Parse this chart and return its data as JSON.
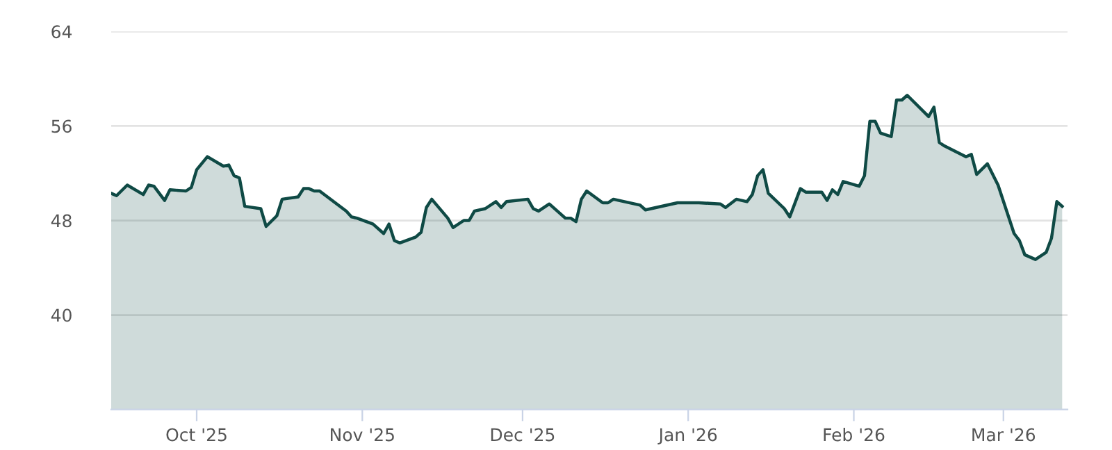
{
  "chart_data": {
    "type": "area",
    "xlim": [
      "2025-09-15",
      "2026-03-13"
    ],
    "ylim": [
      32,
      64
    ],
    "xticks": [
      {
        "value": "2025-10-01",
        "label": "Oct '25"
      },
      {
        "value": "2025-11-01",
        "label": "Nov '25"
      },
      {
        "value": "2025-12-01",
        "label": "Dec '25"
      },
      {
        "value": "2026-01-01",
        "label": "Jan '26"
      },
      {
        "value": "2026-02-01",
        "label": "Feb '26"
      },
      {
        "value": "2026-03-01",
        "label": "Mar '26"
      }
    ],
    "yticks": [
      40,
      48,
      56,
      64
    ],
    "grid": "y",
    "legend": false,
    "series": [
      {
        "color": "#0f4a45",
        "x": [
          "2025-09-15",
          "2025-09-16",
          "2025-09-18",
          "2025-09-21",
          "2025-09-22",
          "2025-09-23",
          "2025-09-25",
          "2025-09-26",
          "2025-09-29",
          "2025-09-30",
          "2025-10-01",
          "2025-10-03",
          "2025-10-06",
          "2025-10-07",
          "2025-10-08",
          "2025-10-09",
          "2025-10-10",
          "2025-10-13",
          "2025-10-14",
          "2025-10-16",
          "2025-10-17",
          "2025-10-20",
          "2025-10-21",
          "2025-10-22",
          "2025-10-23",
          "2025-10-24",
          "2025-10-29",
          "2025-10-30",
          "2025-10-31",
          "2025-11-03",
          "2025-11-05",
          "2025-11-06",
          "2025-11-07",
          "2025-11-08",
          "2025-11-11",
          "2025-11-12",
          "2025-11-13",
          "2025-11-14",
          "2025-11-17",
          "2025-11-18",
          "2025-11-20",
          "2025-11-21",
          "2025-11-22",
          "2025-11-24",
          "2025-11-26",
          "2025-11-27",
          "2025-11-28",
          "2025-12-02",
          "2025-12-03",
          "2025-12-04",
          "2025-12-06",
          "2025-12-09",
          "2025-12-10",
          "2025-12-11",
          "2025-12-12",
          "2025-12-13",
          "2025-12-16",
          "2025-12-17",
          "2025-12-18",
          "2025-12-23",
          "2025-12-24",
          "2025-12-30",
          "2026-01-03",
          "2026-01-07",
          "2026-01-08",
          "2026-01-10",
          "2026-01-12",
          "2026-01-13",
          "2026-01-14",
          "2026-01-15",
          "2026-01-16",
          "2026-01-19",
          "2026-01-20",
          "2026-01-22",
          "2026-01-23",
          "2026-01-26",
          "2026-01-27",
          "2026-01-28",
          "2026-01-29",
          "2026-01-30",
          "2026-02-02",
          "2026-02-03",
          "2026-02-04",
          "2026-02-05",
          "2026-02-06",
          "2026-02-08",
          "2026-02-09",
          "2026-02-10",
          "2026-02-11",
          "2026-02-15",
          "2026-02-16",
          "2026-02-17",
          "2026-02-18",
          "2026-02-22",
          "2026-02-23",
          "2026-02-24",
          "2026-02-26",
          "2026-02-28",
          "2026-03-03",
          "2026-03-04",
          "2026-03-05",
          "2026-03-07",
          "2026-03-09",
          "2026-03-10",
          "2026-03-11",
          "2026-03-12"
        ],
        "values": [
          50.3,
          50.1,
          51.0,
          50.2,
          51.0,
          50.9,
          49.7,
          50.6,
          50.5,
          50.8,
          52.3,
          53.4,
          52.6,
          52.7,
          51.8,
          51.6,
          49.2,
          49.0,
          47.5,
          48.4,
          49.8,
          50.0,
          50.7,
          50.7,
          50.5,
          50.5,
          48.8,
          48.3,
          48.2,
          47.7,
          46.9,
          47.7,
          46.3,
          46.1,
          46.6,
          47.0,
          49.1,
          49.8,
          48.2,
          47.4,
          48.0,
          48.0,
          48.8,
          49.0,
          49.6,
          49.1,
          49.6,
          49.8,
          49.0,
          48.8,
          49.4,
          48.2,
          48.2,
          47.9,
          49.8,
          50.5,
          49.5,
          49.5,
          49.8,
          49.3,
          48.9,
          49.5,
          49.5,
          49.4,
          49.1,
          49.8,
          49.6,
          50.2,
          51.8,
          52.3,
          50.3,
          49.0,
          48.3,
          50.7,
          50.4,
          50.4,
          49.7,
          50.6,
          50.2,
          51.3,
          50.9,
          51.8,
          56.4,
          56.4,
          55.4,
          55.1,
          58.2,
          58.2,
          58.6,
          56.8,
          57.6,
          54.6,
          54.3,
          53.4,
          53.6,
          51.9,
          52.8,
          51.0,
          46.9,
          46.3,
          45.1,
          44.7,
          45.3,
          46.5,
          49.6,
          49.2
        ]
      }
    ]
  }
}
